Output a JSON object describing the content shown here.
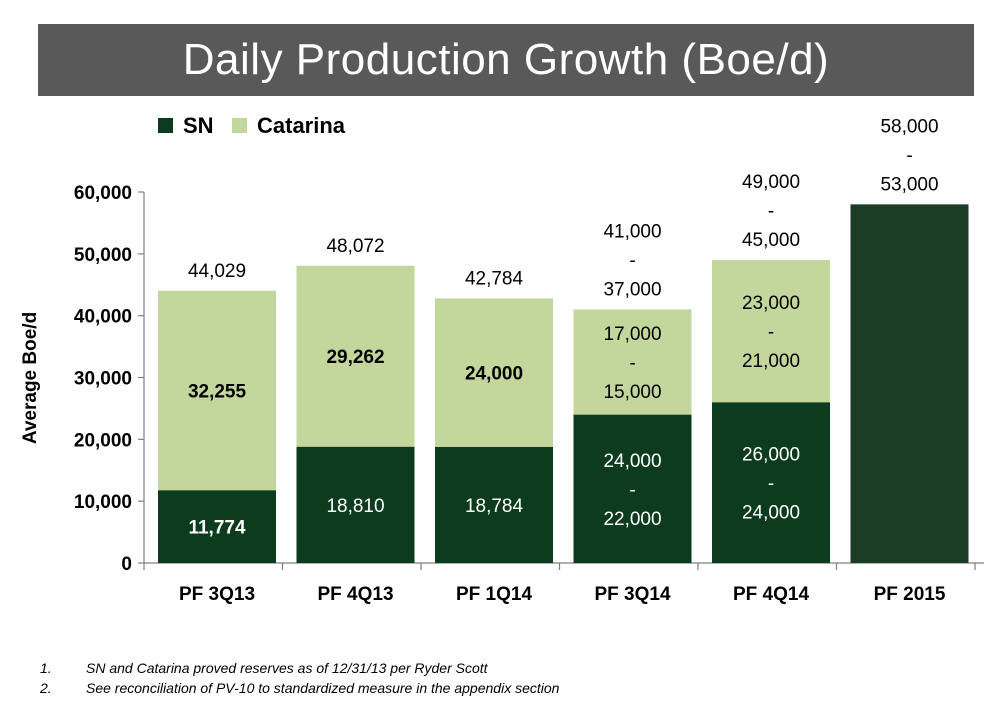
{
  "title": "Daily Production Growth (Boe/d)",
  "colors": {
    "sn": "#0d3b1e",
    "catarina": "#c3d69b",
    "pf2015": "#1b3d26",
    "title_bg": "#595959"
  },
  "chart_data": {
    "type": "bar",
    "stacked": true,
    "ylabel": "Average Boe/d",
    "xlabel": "",
    "ylim": [
      0,
      60000
    ],
    "yticks": [
      0,
      10000,
      20000,
      30000,
      40000,
      50000,
      60000
    ],
    "ytick_labels": [
      "0",
      "10,000",
      "20,000",
      "30,000",
      "40,000",
      "50,000",
      "60,000"
    ],
    "legend": [
      "SN",
      "Catarina"
    ],
    "legend_position": "top-left",
    "grid": false,
    "categories": [
      "PF 3Q13",
      "PF 4Q13",
      "PF 1Q14",
      "PF 3Q14",
      "PF 4Q14",
      "PF 2015"
    ],
    "series": [
      {
        "name": "SN",
        "values": [
          11774,
          18810,
          18784,
          24000,
          26000,
          58000
        ],
        "labels": [
          [
            "11,774"
          ],
          [
            "18,810"
          ],
          [
            "18,784"
          ],
          [
            "24,000",
            "-",
            "22,000"
          ],
          [
            "26,000",
            "-",
            "24,000"
          ],
          []
        ],
        "label_bold": [
          true,
          false,
          false,
          false,
          false,
          false
        ]
      },
      {
        "name": "Catarina",
        "values": [
          32255,
          29262,
          24000,
          17000,
          23000,
          0
        ],
        "labels": [
          [
            "32,255"
          ],
          [
            "29,262"
          ],
          [
            "24,000"
          ],
          [
            "17,000",
            "-",
            "15,000"
          ],
          [
            "23,000",
            "-",
            "21,000"
          ],
          []
        ],
        "label_bold": [
          true,
          true,
          true,
          false,
          false,
          false
        ]
      }
    ],
    "totals": [
      [
        "44,029"
      ],
      [
        "48,072"
      ],
      [
        "42,784"
      ],
      [
        "41,000",
        "-",
        "37,000"
      ],
      [
        "49,000",
        "-",
        "45,000"
      ],
      [
        "58,000",
        "-",
        "53,000"
      ]
    ]
  },
  "footnotes": [
    {
      "num": "1.",
      "text": "SN and Catarina proved reserves as of 12/31/13 per Ryder Scott"
    },
    {
      "num": "2.",
      "text": "See reconciliation of PV-10 to standardized measure in the appendix section"
    }
  ]
}
